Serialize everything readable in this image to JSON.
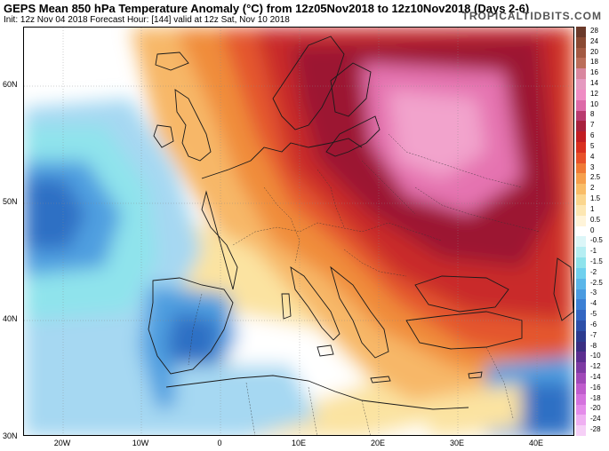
{
  "header": {
    "title": "GEPS Mean 850 hPa Temperature Anomaly (°C) from 12z05Nov2018 to 12z10Nov2018 (Days 2-6)",
    "subtitle": "Init: 12z Nov 04 2018   Forecast Hour: [144]   valid at 12z Sat, Nov 10 2018",
    "brand": "TROPICALTIDBITS.COM"
  },
  "map": {
    "lat_labels": [
      "60N",
      "50N",
      "40N",
      "30N"
    ],
    "lon_labels": [
      "20W",
      "10W",
      "0",
      "10E",
      "20E",
      "30E",
      "40E"
    ],
    "colors": {
      "deep_red": "#9c1430",
      "red": "#c92a2a",
      "orange_red": "#e4572e",
      "orange": "#f08c3a",
      "light_orange": "#f7b768",
      "yellow": "#fbe3a1",
      "pink": "#e573b0",
      "light_pink": "#f2a3cc",
      "cyan": "#8fe3ec",
      "light_blue": "#a6d8f2",
      "blue": "#4f9fe0",
      "deep_blue": "#2f6fc4",
      "land_line": "#1a1a1a"
    }
  },
  "colorbar": {
    "labels": [
      "28",
      "24",
      "20",
      "18",
      "16",
      "14",
      "12",
      "10",
      "8",
      "7",
      "6",
      "5",
      "4",
      "3",
      "2.5",
      "2",
      "1.5",
      "1",
      "0.5",
      "0",
      "-0.5",
      "-1",
      "-1.5",
      "-2",
      "-2.5",
      "-3",
      "-4",
      "-5",
      "-6",
      "-7",
      "-8",
      "-10",
      "-12",
      "-14",
      "-16",
      "-18",
      "-20",
      "-24",
      "-28"
    ],
    "colors": [
      "#6b3a2a",
      "#8a4a33",
      "#a35a43",
      "#bb6e5a",
      "#d9879f",
      "#e59ac0",
      "#ef8cc4",
      "#dd6aa8",
      "#b93a6f",
      "#a8213d",
      "#c21d23",
      "#d93020",
      "#e8512a",
      "#f07a36",
      "#f6a04d",
      "#f9bd68",
      "#fbd68e",
      "#fde7b3",
      "#fff4d9",
      "#ffffff",
      "#dcf6f8",
      "#b6eef3",
      "#8ee3ec",
      "#6fd0ee",
      "#5ab6e9",
      "#4a9be0",
      "#3c80d4",
      "#3366c2",
      "#2d4fa8",
      "#2c3b8f",
      "#3a2e82",
      "#5c2e90",
      "#7d3aa3",
      "#a049b8",
      "#bf5ccd",
      "#d472de",
      "#e48cea",
      "#efb0f2",
      "#f6d0f7"
    ]
  }
}
